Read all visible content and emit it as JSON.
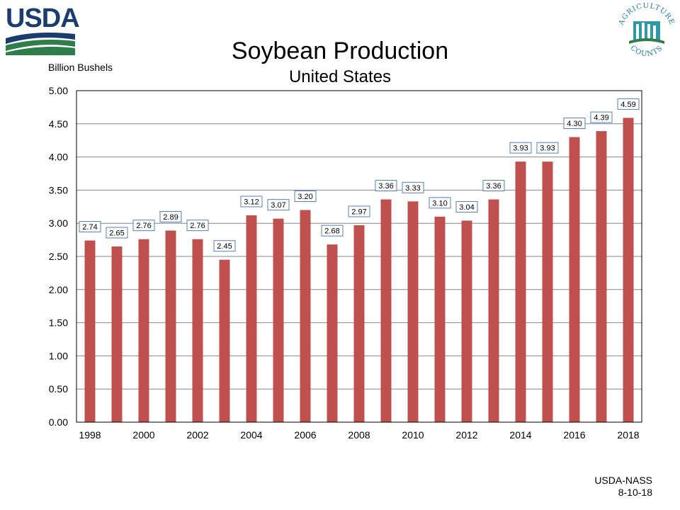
{
  "header": {
    "logo_left": "USDA",
    "logo_right": "AGRICULTURE COUNTS"
  },
  "footer": {
    "source": "USDA-NASS",
    "date": "8-10-18"
  },
  "colors": {
    "bar": "#c0504d",
    "label_border": "#4f81bd",
    "usda_blue": "#1b3c6e",
    "usda_green": "#2e7d4a",
    "ag_teal": "#1a7f8e"
  },
  "chart_data": {
    "type": "bar",
    "title": "Soybean Production",
    "subtitle": "United States",
    "ylabel": "Billion Bushels",
    "xlabel": "",
    "ylim": [
      0,
      5
    ],
    "yticks": [
      "0.00",
      "0.50",
      "1.00",
      "1.50",
      "2.00",
      "2.50",
      "3.00",
      "3.50",
      "4.00",
      "4.50",
      "5.00"
    ],
    "xticks": [
      "1998",
      "2000",
      "2002",
      "2004",
      "2006",
      "2008",
      "2010",
      "2012",
      "2014",
      "2016",
      "2018"
    ],
    "grid": true,
    "categories": [
      "1998",
      "1999",
      "2000",
      "2001",
      "2002",
      "2003",
      "2004",
      "2005",
      "2006",
      "2007",
      "2008",
      "2009",
      "2010",
      "2011",
      "2012",
      "2013",
      "2014",
      "2015",
      "2016",
      "2017",
      "2018"
    ],
    "values": [
      2.74,
      2.65,
      2.76,
      2.89,
      2.76,
      2.45,
      3.12,
      3.07,
      3.2,
      2.68,
      2.97,
      3.36,
      3.33,
      3.1,
      3.04,
      3.36,
      3.93,
      3.93,
      4.3,
      4.39,
      4.59
    ],
    "data_labels": [
      "2.74",
      "2.65",
      "2.76",
      "2.89",
      "2.76",
      "2.45",
      "3.12",
      "3.07",
      "3.20",
      "2.68",
      "2.97",
      "3.36",
      "3.33",
      "3.10",
      "3.04",
      "3.36",
      "3.93",
      "3.93",
      "4.30",
      "4.39",
      "4.59"
    ]
  }
}
